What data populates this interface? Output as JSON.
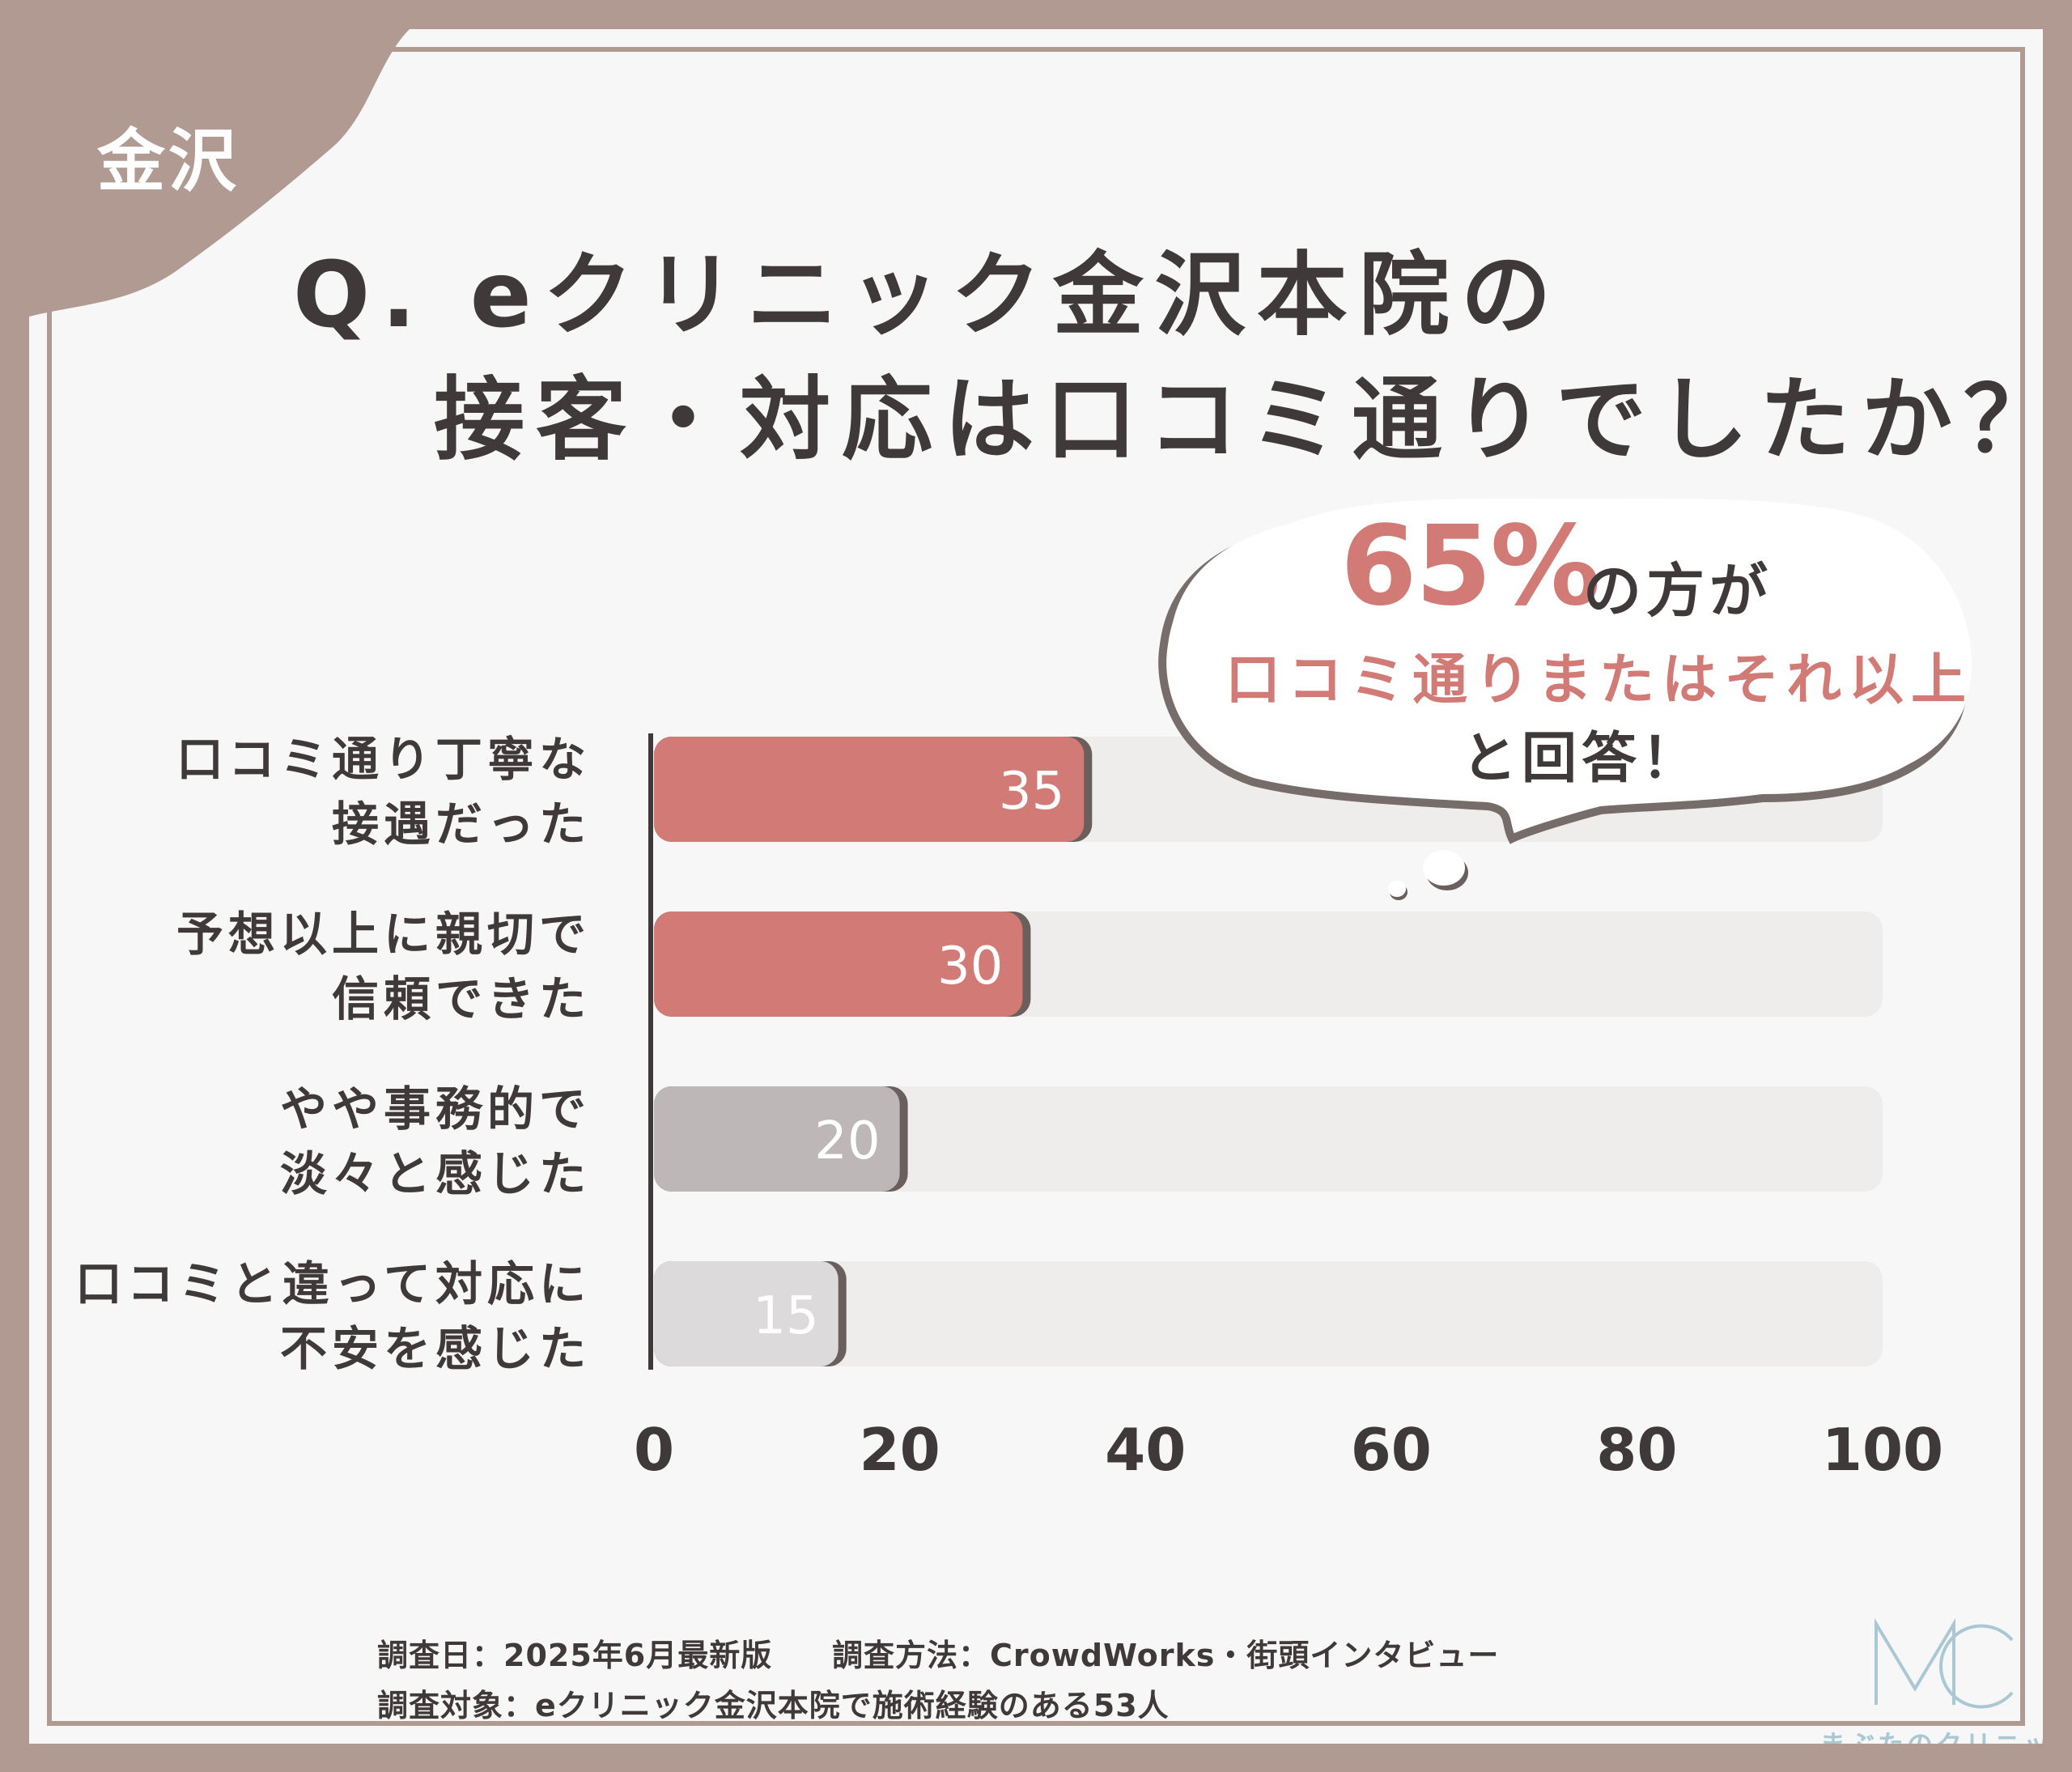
{
  "corner_label": "金沢",
  "title": {
    "line1": "Q. eクリニック金沢本院の",
    "line2": "接客・対応は口コミ通りでしたか？"
  },
  "callout": {
    "percent": "65%",
    "suffix": "の方が",
    "line2": "口コミ通りまたはそれ以上",
    "line3": "と回答！"
  },
  "colors": {
    "frame": "#b09a92",
    "accent": "#d17a76",
    "gray_mid": "#bdb8b7",
    "gray_light": "#dcdada",
    "text": "#3f3a39",
    "track": "#efedec"
  },
  "chart_data": {
    "type": "bar",
    "orientation": "horizontal",
    "categories": [
      [
        "口コミ通り丁寧な",
        "接遇だった"
      ],
      [
        "予想以上に親切で",
        "信頼できた"
      ],
      [
        "やや事務的で",
        "淡々と感じた"
      ],
      [
        "口コミと違って対応に",
        "不安を感じた"
      ]
    ],
    "values": [
      35,
      30,
      20,
      15
    ],
    "bar_colors": [
      "#d17a76",
      "#d17a76",
      "#bdb8b7",
      "#dcdada"
    ],
    "xlim": [
      0,
      100
    ],
    "xticks": [
      0,
      20,
      40,
      60,
      80,
      100
    ],
    "value_labels": true
  },
  "footer": {
    "date": "調査日：2025年6月最新版",
    "method": "調査方法：CrowdWorks・街頭インタビュー",
    "target": "調査対象：eクリニック金沢本院で施術経験のある53人"
  },
  "logo": {
    "mark": "MC",
    "name": "まぶたのクリニック"
  }
}
